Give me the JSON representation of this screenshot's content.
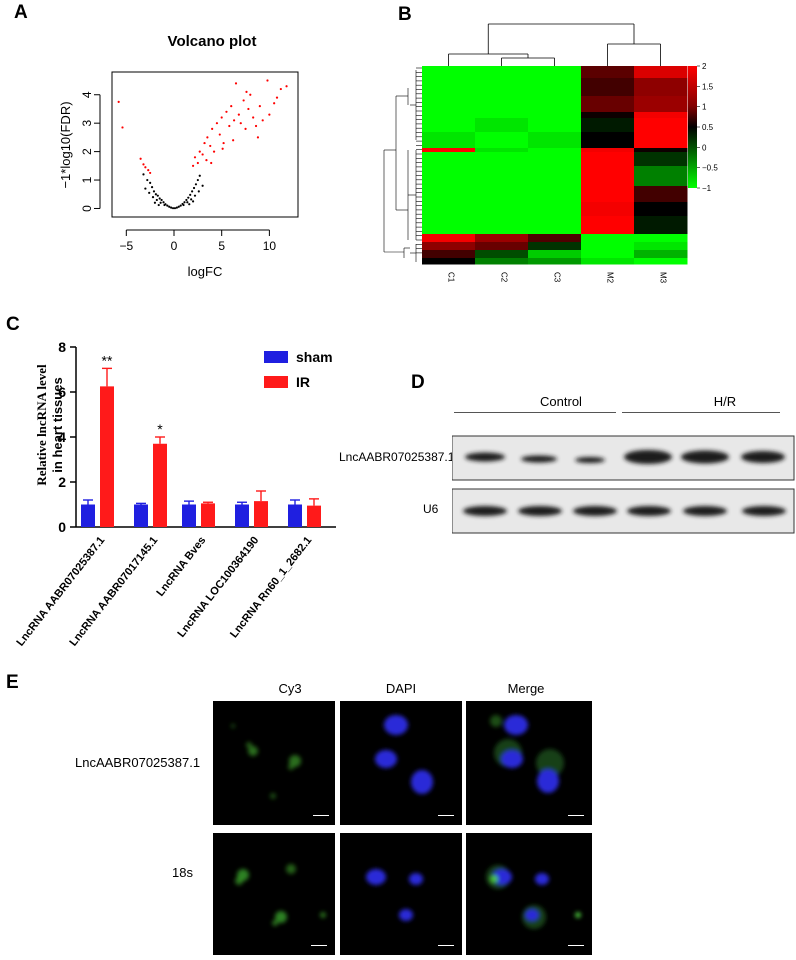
{
  "panels": {
    "a": "A",
    "b": "B",
    "c": "C",
    "d": "D",
    "e": "E"
  },
  "volcano": {
    "title": "Volcano plot",
    "xlabel": "logFC",
    "ylabel": "−1*log10(FDR)",
    "xticks": [
      "−5",
      "0",
      "5",
      "10"
    ],
    "yticks": [
      "0",
      "1",
      "2",
      "3",
      "4"
    ]
  },
  "heatmap": {
    "columns": [
      "C1",
      "C2",
      "C3",
      "M2",
      "M3"
    ],
    "legend_ticks": [
      "2",
      "1.5",
      "1",
      "0.5",
      "0",
      "−0.5",
      "−1"
    ]
  },
  "bar": {
    "ylabel_line1": "Relative lncRNA level",
    "ylabel_line2": "in heart tissues",
    "yticks": [
      "0",
      "2",
      "4",
      "6",
      "8"
    ],
    "legend": [
      "sham",
      "IR"
    ],
    "significance": [
      "**",
      "*",
      "",
      "",
      ""
    ]
  },
  "blot": {
    "groups": [
      "Control",
      "H/R"
    ],
    "rows": [
      "LncAABR07025387.1",
      "U6"
    ]
  },
  "fish": {
    "columns": [
      "Cy3",
      "DAPI",
      "Merge"
    ],
    "rows": [
      "LncAABR07025387.1",
      "18s"
    ]
  },
  "colors": {
    "sham": "#1f1fe0",
    "ir": "#ff1a1a",
    "heat_high": "#ff0000",
    "heat_mid": "#000000",
    "heat_low": "#00ff00"
  },
  "chart_data": [
    {
      "type": "scatter",
      "title": "Volcano plot",
      "xlabel": "logFC",
      "ylabel": "−1*log10(FDR)",
      "xlim": [
        -6.5,
        13
      ],
      "ylim": [
        -0.3,
        4.8
      ],
      "series": [
        {
          "name": "",
          "color": "#ff0000",
          "points": [
            [
              -5.8,
              3.75
            ],
            [
              -5.4,
              2.85
            ],
            [
              -3.5,
              1.75
            ],
            [
              -3.2,
              1.55
            ],
            [
              -3.0,
              1.45
            ],
            [
              -2.7,
              1.35
            ],
            [
              -2.5,
              1.25
            ],
            [
              2.0,
              1.5
            ],
            [
              2.2,
              1.8
            ],
            [
              2.5,
              1.6
            ],
            [
              2.7,
              2.0
            ],
            [
              3.0,
              1.9
            ],
            [
              3.2,
              2.3
            ],
            [
              3.4,
              1.7
            ],
            [
              3.5,
              2.5
            ],
            [
              3.8,
              2.2
            ],
            [
              4.0,
              2.8
            ],
            [
              4.2,
              2.0
            ],
            [
              4.5,
              3.0
            ],
            [
              4.8,
              2.6
            ],
            [
              5.0,
              3.2
            ],
            [
              5.2,
              2.3
            ],
            [
              5.5,
              3.4
            ],
            [
              5.8,
              2.9
            ],
            [
              6.0,
              3.6
            ],
            [
              6.3,
              3.1
            ],
            [
              6.5,
              4.4
            ],
            [
              6.8,
              3.3
            ],
            [
              7.0,
              3.0
            ],
            [
              7.3,
              3.8
            ],
            [
              7.5,
              2.8
            ],
            [
              7.8,
              3.5
            ],
            [
              8.0,
              4.0
            ],
            [
              8.3,
              3.2
            ],
            [
              8.6,
              2.9
            ],
            [
              9.0,
              3.6
            ],
            [
              9.3,
              3.1
            ],
            [
              9.8,
              4.5
            ],
            [
              10.0,
              3.3
            ],
            [
              10.5,
              3.7
            ],
            [
              10.8,
              3.9
            ],
            [
              11.2,
              4.2
            ],
            [
              11.8,
              4.3
            ],
            [
              6.2,
              2.4
            ],
            [
              5.1,
              2.1
            ],
            [
              3.9,
              1.6
            ],
            [
              8.8,
              2.5
            ],
            [
              7.6,
              4.1
            ]
          ]
        },
        {
          "name": "",
          "color": "#000000",
          "points": [
            [
              -3.2,
              1.2
            ],
            [
              -2.8,
              1.0
            ],
            [
              -2.5,
              0.9
            ],
            [
              -2.3,
              0.75
            ],
            [
              -2.1,
              0.6
            ],
            [
              -1.9,
              0.5
            ],
            [
              -1.7,
              0.45
            ],
            [
              -1.5,
              0.35
            ],
            [
              -1.3,
              0.3
            ],
            [
              -1.1,
              0.22
            ],
            [
              -0.9,
              0.15
            ],
            [
              -0.7,
              0.1
            ],
            [
              -0.5,
              0.06
            ],
            [
              -0.3,
              0.03
            ],
            [
              -0.1,
              0.01
            ],
            [
              0.1,
              0.01
            ],
            [
              0.3,
              0.03
            ],
            [
              0.5,
              0.06
            ],
            [
              0.7,
              0.1
            ],
            [
              0.9,
              0.16
            ],
            [
              1.1,
              0.22
            ],
            [
              1.3,
              0.3
            ],
            [
              1.5,
              0.38
            ],
            [
              1.7,
              0.48
            ],
            [
              1.9,
              0.6
            ],
            [
              2.1,
              0.72
            ],
            [
              2.3,
              0.85
            ],
            [
              2.5,
              1.0
            ],
            [
              2.7,
              1.15
            ],
            [
              -2.6,
              0.55
            ],
            [
              -2.2,
              0.4
            ],
            [
              -1.8,
              0.3
            ],
            [
              -1.4,
              0.2
            ],
            [
              -1.0,
              0.12
            ],
            [
              1.0,
              0.12
            ],
            [
              1.4,
              0.22
            ],
            [
              1.8,
              0.32
            ],
            [
              2.2,
              0.45
            ],
            [
              2.6,
              0.6
            ],
            [
              -3.0,
              0.7
            ],
            [
              3.0,
              0.8
            ],
            [
              -2.0,
              0.2
            ],
            [
              2.0,
              0.25
            ],
            [
              -1.6,
              0.12
            ],
            [
              1.6,
              0.15
            ]
          ]
        }
      ]
    },
    {
      "type": "heatmap",
      "columns": [
        "C1",
        "C2",
        "C3",
        "M2",
        "M3"
      ],
      "color_range": [
        -1,
        2
      ],
      "legend_ticks": [
        2,
        1.5,
        1,
        0.5,
        0,
        -0.5,
        -1
      ]
    },
    {
      "type": "bar",
      "ylabel": "Relative lncRNA level in heart tissues",
      "categories": [
        "LncRNA AABR07025387.1",
        "LncRNA AABR07017145.1",
        "LncRNA Bves",
        "LncRNA LOC100364190",
        "LncRNA Rn60_1_2682.1"
      ],
      "ylim": [
        0,
        8
      ],
      "series": [
        {
          "name": "sham",
          "values": [
            1.0,
            1.0,
            1.0,
            1.0,
            1.0
          ],
          "errors": [
            0.2,
            0.05,
            0.15,
            0.1,
            0.2
          ]
        },
        {
          "name": "IR",
          "values": [
            6.25,
            3.7,
            1.05,
            1.15,
            0.95
          ],
          "errors": [
            0.8,
            0.3,
            0.05,
            0.45,
            0.3
          ]
        }
      ]
    }
  ]
}
